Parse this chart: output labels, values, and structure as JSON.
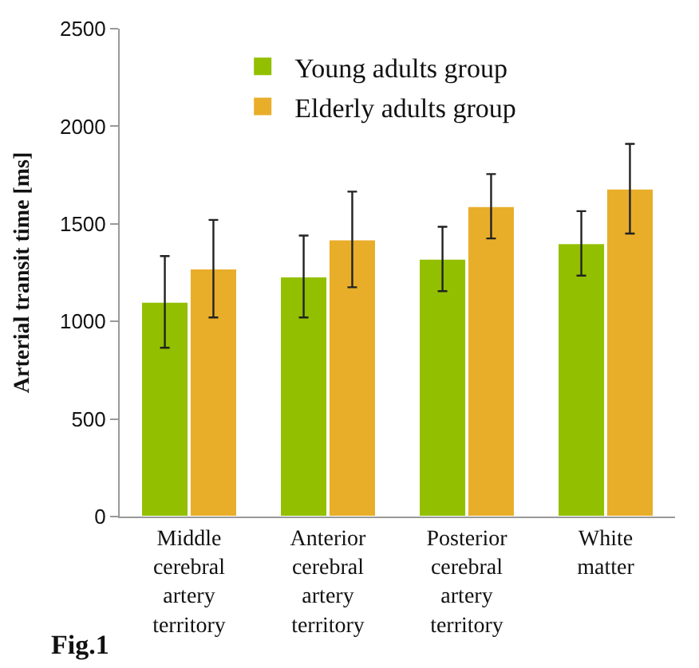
{
  "chart_data": {
    "type": "bar",
    "ylabel": "Arterial transit time [ms]",
    "categories": [
      "Middle\ncerebral\nartery\nterritory",
      "Anterior\ncerebral\nartery\nterritory",
      "Posterior\ncerebral\nartery\nterritory",
      "White\nmatter"
    ],
    "series": [
      {
        "name": "Young adults group",
        "color": "#92c000",
        "values": [
          1100,
          1230,
          1320,
          1400
        ],
        "errors": [
          235,
          210,
          165,
          165
        ]
      },
      {
        "name": "Elderly adults group",
        "color": "#e8ae2a",
        "values": [
          1270,
          1420,
          1590,
          1680
        ],
        "errors": [
          250,
          245,
          165,
          230
        ]
      }
    ],
    "ylim": [
      0,
      2500
    ],
    "yticks": [
      0,
      500,
      1000,
      1500,
      2000,
      2500
    ],
    "legend": "top",
    "annotations": [
      "Fig.1"
    ]
  }
}
